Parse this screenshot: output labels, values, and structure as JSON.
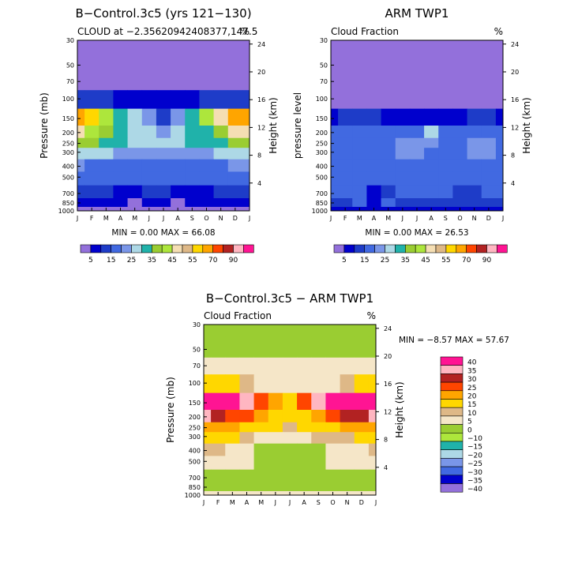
{
  "chart_data": [
    {
      "type": "heatmap",
      "title": "B−Control.3c5 (yrs 121−130)",
      "subtitle_left": "CLOUD at −2.35620942408377,147.5",
      "subtitle_right": "%",
      "ylabel_left": "Pressure (mb)",
      "ylabel_right": "Height (km)",
      "x_ticks": [
        "J",
        "F",
        "M",
        "A",
        "M",
        "J",
        "J",
        "A",
        "S",
        "O",
        "N",
        "D",
        "J"
      ],
      "y_ticks": [
        "30",
        "50",
        "70",
        "100",
        "150",
        "200",
        "250",
        "300",
        "400",
        "500",
        "700",
        "850",
        "1000"
      ],
      "height_ticks": [
        "24",
        "20",
        "16",
        "12",
        "8",
        "4"
      ],
      "stats_text": "MIN =    0.00 MAX =   66.08",
      "legend_labels": [
        "5",
        "15",
        "25",
        "35",
        "45",
        "55",
        "70",
        "90"
      ],
      "colors": [
        "#9370DB",
        "#0000CD",
        "#1E3CC8",
        "#4169E1",
        "#7A96E8",
        "#ADD8E6",
        "#20B2AA",
        "#9ACD32",
        "#ADE63C",
        "#F5DEB3",
        "#DEB887",
        "#FFD700",
        "#FFA500",
        "#FF4500",
        "#B22222",
        "#FFB6C1",
        "#FF1493"
      ],
      "levels": [
        0,
        5,
        10,
        15,
        20,
        25,
        30,
        35,
        40,
        45,
        50,
        55,
        60,
        70,
        80,
        90,
        100
      ],
      "pressure_levels": [
        30,
        50,
        70,
        100,
        150,
        200,
        250,
        300,
        400,
        500,
        700,
        850,
        1000
      ],
      "z": [
        [
          2,
          2,
          2,
          2,
          2,
          2,
          2,
          2,
          2,
          2,
          2,
          2,
          2
        ],
        [
          2,
          2,
          2,
          2,
          2,
          2,
          2,
          2,
          2,
          2,
          2,
          2,
          2
        ],
        [
          2,
          2,
          2,
          2,
          2,
          2,
          2,
          2,
          2,
          2,
          2,
          2,
          2
        ],
        [
          12,
          12,
          10,
          8,
          6,
          5,
          5,
          6,
          8,
          10,
          12,
          12,
          12
        ],
        [
          62,
          58,
          44,
          33,
          28,
          22,
          14,
          22,
          30,
          40,
          48,
          60,
          62
        ],
        [
          48,
          44,
          38,
          32,
          28,
          26,
          24,
          26,
          30,
          34,
          38,
          45,
          48
        ],
        [
          36,
          36,
          33,
          30,
          28,
          26,
          26,
          28,
          30,
          32,
          34,
          36,
          36
        ],
        [
          28,
          28,
          26,
          24,
          22,
          22,
          22,
          22,
          24,
          24,
          26,
          28,
          28
        ],
        [
          20,
          19,
          18,
          18,
          17,
          16,
          16,
          17,
          17,
          18,
          19,
          20,
          20
        ],
        [
          18,
          17,
          17,
          16,
          16,
          16,
          16,
          16,
          15,
          15,
          16,
          17,
          18
        ],
        [
          10,
          10,
          11,
          8,
          6,
          10,
          12,
          7,
          8,
          9,
          10,
          10,
          10
        ],
        [
          5,
          6,
          6,
          7,
          4,
          6,
          7,
          4,
          5,
          6,
          7,
          6,
          5
        ],
        [
          3,
          3,
          3,
          3,
          3,
          3,
          3,
          3,
          3,
          3,
          3,
          3,
          3
        ]
      ]
    },
    {
      "type": "heatmap",
      "title": "ARM TWP1",
      "subtitle_left": "Cloud Fraction",
      "subtitle_right": "%",
      "ylabel_left": "pressure level",
      "ylabel_right": "Height (km)",
      "x_ticks": [
        "J",
        "F",
        "M",
        "A",
        "M",
        "J",
        "J",
        "A",
        "S",
        "O",
        "N",
        "D",
        "J"
      ],
      "y_ticks": [
        "30",
        "50",
        "70",
        "100",
        "150",
        "200",
        "250",
        "300",
        "400",
        "500",
        "700",
        "850",
        "1000"
      ],
      "height_ticks": [
        "24",
        "20",
        "16",
        "12",
        "8",
        "4"
      ],
      "stats_text": "MIN =    0.00 MAX =   26.53",
      "legend_labels": [
        "5",
        "15",
        "25",
        "35",
        "45",
        "55",
        "70",
        "90"
      ],
      "colors": [
        "#9370DB",
        "#0000CD",
        "#1E3CC8",
        "#4169E1",
        "#7A96E8",
        "#ADD8E6",
        "#20B2AA",
        "#9ACD32",
        "#ADE63C",
        "#F5DEB3",
        "#DEB887",
        "#FFD700",
        "#FFA500",
        "#FF4500",
        "#B22222",
        "#FFB6C1",
        "#FF1493"
      ],
      "levels": [
        0,
        5,
        10,
        15,
        20,
        25,
        30,
        35,
        40,
        45,
        50,
        55,
        60,
        70,
        80,
        90,
        100
      ],
      "pressure_levels": [
        30,
        50,
        70,
        100,
        150,
        200,
        250,
        300,
        400,
        500,
        700,
        850,
        1000
      ],
      "z": [
        [
          2,
          2,
          2,
          2,
          2,
          2,
          2,
          2,
          2,
          2,
          2,
          2,
          2
        ],
        [
          2,
          2,
          2,
          2,
          2,
          2,
          2,
          2,
          2,
          2,
          2,
          2,
          2
        ],
        [
          2,
          2,
          2,
          2,
          2,
          2,
          2,
          2,
          2,
          2,
          2,
          2,
          2
        ],
        [
          3,
          3,
          3,
          3,
          3,
          3,
          3,
          3,
          3,
          3,
          3,
          3,
          3
        ],
        [
          9,
          11,
          12,
          11,
          9,
          7,
          6,
          8,
          7,
          8,
          10,
          12,
          9
        ],
        [
          17,
          17,
          16,
          16,
          16,
          17,
          18,
          26,
          18,
          17,
          17,
          17,
          17
        ],
        [
          18,
          19,
          17,
          17,
          18,
          22,
          22,
          21,
          19,
          17,
          22,
          23,
          18
        ],
        [
          17,
          17,
          17,
          18,
          19,
          21,
          21,
          19,
          18,
          17,
          22,
          22,
          17
        ],
        [
          16,
          16,
          16,
          16,
          17,
          17,
          17,
          16,
          16,
          16,
          17,
          17,
          16
        ],
        [
          16,
          16,
          16,
          16,
          17,
          16,
          16,
          16,
          16,
          16,
          16,
          16,
          16
        ],
        [
          16,
          16,
          15,
          8,
          14,
          15,
          15,
          15,
          16,
          12,
          14,
          16,
          16
        ],
        [
          14,
          13,
          15,
          6,
          15,
          14,
          14,
          14,
          14,
          14,
          14,
          13,
          14
        ],
        [
          8,
          8,
          8,
          8,
          8,
          8,
          8,
          8,
          8,
          8,
          8,
          8,
          8
        ]
      ]
    },
    {
      "type": "heatmap",
      "title": "B−Control.3c5 − ARM TWP1",
      "subtitle_left": "Cloud Fraction",
      "subtitle_right": "%",
      "ylabel_left": "Pressure (mb)",
      "ylabel_right": "Height (km)",
      "x_ticks": [
        "J",
        "F",
        "M",
        "A",
        "M",
        "J",
        "J",
        "A",
        "S",
        "O",
        "N",
        "D",
        "J"
      ],
      "y_ticks": [
        "30",
        "50",
        "70",
        "100",
        "150",
        "200",
        "250",
        "300",
        "400",
        "500",
        "700",
        "850",
        "1000"
      ],
      "height_ticks": [
        "24",
        "20",
        "16",
        "12",
        "8",
        "4"
      ],
      "stats_text": "MIN =   −8.57 MAX =   57.67",
      "legend_labels": [
        "40",
        "35",
        "30",
        "25",
        "20",
        "15",
        "10",
        "5",
        "0",
        "−10",
        "−15",
        "−20",
        "−25",
        "−30",
        "−35",
        "−40"
      ],
      "colors": [
        "#9370DB",
        "#0000CD",
        "#4169E1",
        "#7A96E8",
        "#ADD8E6",
        "#20B2AA",
        "#ADE63C",
        "#9ACD32",
        "#F5E6C8",
        "#DEB887",
        "#FFD700",
        "#FFA500",
        "#FF4500",
        "#B22222",
        "#FFB6C1",
        "#FF1493"
      ],
      "levels": [
        -50,
        -40,
        -35,
        -30,
        -25,
        -20,
        -15,
        -10,
        0,
        5,
        10,
        15,
        20,
        25,
        30,
        35,
        100
      ],
      "pressure_levels": [
        30,
        50,
        70,
        100,
        150,
        200,
        250,
        300,
        400,
        500,
        700,
        850,
        1000
      ],
      "z": [
        [
          -2,
          -2,
          -2,
          -2,
          -2,
          -2,
          -2,
          -2,
          -2,
          -2,
          -2,
          -2,
          -2
        ],
        [
          -2,
          -2,
          -2,
          -2,
          -2,
          -2,
          -2,
          -2,
          -1,
          -2,
          -2,
          -2,
          -2
        ],
        [
          1,
          1,
          1,
          1,
          1,
          1,
          1,
          1,
          1,
          1,
          1,
          1,
          1
        ],
        [
          12,
          14,
          10,
          6,
          3,
          2,
          2,
          2,
          2,
          4,
          6,
          10,
          14
        ],
        [
          52,
          48,
          42,
          30,
          22,
          16,
          12,
          22,
          32,
          38,
          46,
          52,
          52
        ],
        [
          30,
          27,
          24,
          20,
          15,
          12,
          10,
          14,
          18,
          22,
          26,
          28,
          30
        ],
        [
          18,
          17,
          16,
          14,
          12,
          10,
          8,
          10,
          12,
          14,
          16,
          18,
          18
        ],
        [
          12,
          12,
          10,
          8,
          4,
          2,
          1,
          3,
          5,
          6,
          8,
          10,
          12
        ],
        [
          5,
          5,
          3,
          2,
          -1,
          -2,
          -2,
          -1,
          -1,
          1,
          2,
          3,
          5
        ],
        [
          2,
          2,
          1,
          0,
          -1,
          -2,
          -2,
          -2,
          -1,
          1,
          0,
          1,
          2
        ],
        [
          -2,
          -2,
          -1,
          -1,
          -2,
          -2,
          -3,
          -2,
          -2,
          -2,
          -2,
          -2,
          -2
        ],
        [
          -2,
          -2,
          -2,
          -2,
          -2,
          -2,
          -2,
          -2,
          -2,
          -2,
          -2,
          -2,
          -2
        ],
        [
          2,
          2,
          2,
          2,
          2,
          2,
          2,
          2,
          2,
          2,
          2,
          2,
          2
        ]
      ]
    }
  ]
}
